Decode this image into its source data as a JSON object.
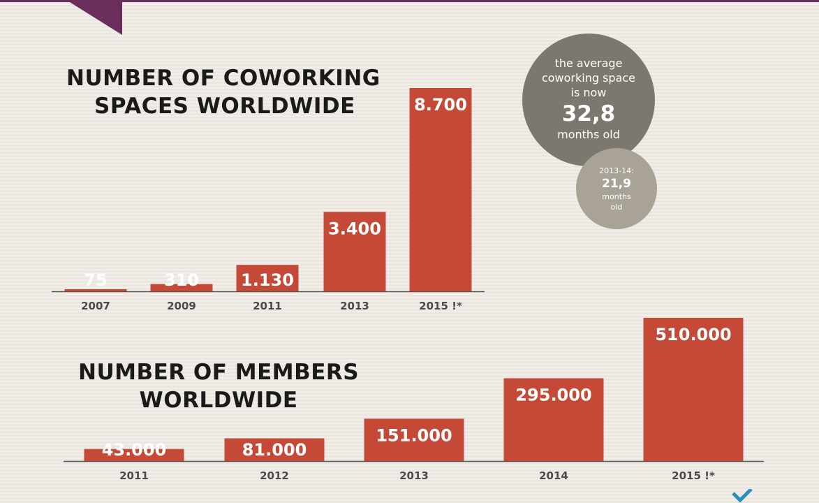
{
  "chart_data": [
    {
      "type": "bar",
      "title": "NUMBER OF COWORKING SPACES WORLDWIDE",
      "title_lines": [
        "NUMBER OF COWORKING",
        "SPACES WORLDWIDE"
      ],
      "categories": [
        "2007",
        "2009",
        "2011",
        "2013",
        "2015 !*"
      ],
      "values": [
        75,
        310,
        1130,
        3400,
        8700
      ],
      "value_labels": [
        "75",
        "310",
        "1.130",
        "3.400",
        "8.700"
      ],
      "ylim": [
        0,
        8700
      ],
      "grid": false,
      "bar_color": "#c44a37"
    },
    {
      "type": "bar",
      "title": "NUMBER OF MEMBERS WORLDWIDE",
      "title_lines": [
        "NUMBER OF MEMBERS",
        "WORLDWIDE"
      ],
      "categories": [
        "2011",
        "2012",
        "2013",
        "2014",
        "2015 !*"
      ],
      "values": [
        43000,
        81000,
        151000,
        295000,
        510000
      ],
      "value_labels": [
        "43.000",
        "81.000",
        "151.000",
        "295.000",
        "510.000"
      ],
      "ylim": [
        0,
        510000
      ],
      "grid": false,
      "bar_color": "#c44a37"
    }
  ],
  "callouts": {
    "average_age": {
      "line1": "the average",
      "line2": "coworking space",
      "line3": "is now",
      "value": "32,8",
      "unit": "months old"
    },
    "previous_age": {
      "period": "2013-14:",
      "value": "21,9",
      "unit1": "months",
      "unit2": "old"
    }
  },
  "colors": {
    "accent": "#6b2d5c",
    "bar": "#c44a37",
    "bubble_dark": "#7d786f",
    "bubble_light": "#a8a297"
  }
}
